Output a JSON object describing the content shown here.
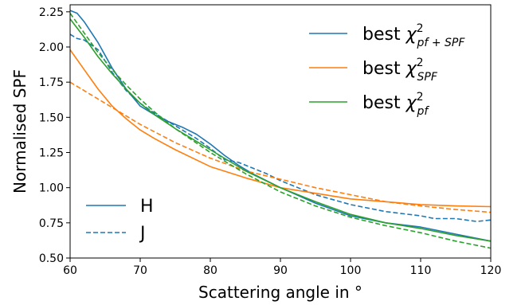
{
  "chart_data": {
    "type": "line",
    "xlabel": "Scattering angle in °",
    "ylabel": "Normalised SPF",
    "xlim": [
      60,
      120
    ],
    "ylim": [
      0.5,
      2.3
    ],
    "xticks": [
      "60",
      "70",
      "80",
      "90",
      "100",
      "110",
      "120"
    ],
    "yticks": [
      "0.50",
      "0.75",
      "1.00",
      "1.25",
      "1.50",
      "1.75",
      "2.00",
      "2.25"
    ],
    "grid": false,
    "colors": {
      "blue": "#1f77b4",
      "orange": "#ff7f0e",
      "green": "#2ca02c"
    },
    "legend_color": {
      "position": "top-right",
      "entries": [
        {
          "prefix": "best ",
          "chi": "χ",
          "sup": "2",
          "sub": "pf + SPF",
          "color": "#1f77b4"
        },
        {
          "prefix": "best ",
          "chi": "χ",
          "sup": "2",
          "sub": "SPF",
          "color": "#ff7f0e"
        },
        {
          "prefix": "best ",
          "chi": "χ",
          "sup": "2",
          "sub": "pf",
          "color": "#2ca02c"
        }
      ]
    },
    "legend_style": {
      "position": "bottom-left",
      "entries": [
        {
          "label": "H",
          "style": "solid",
          "color": "#1f77b4"
        },
        {
          "label": "J",
          "style": "dashed",
          "color": "#1f77b4"
        }
      ]
    },
    "series": [
      {
        "color_key": "blue",
        "style": "solid",
        "x": [
          60,
          61,
          62,
          64,
          66,
          68,
          70,
          72,
          74,
          76,
          78,
          80,
          82,
          84,
          86,
          88,
          90,
          95,
          100,
          105,
          110,
          115,
          120
        ],
        "y": [
          2.26,
          2.24,
          2.18,
          2.03,
          1.85,
          1.7,
          1.58,
          1.52,
          1.47,
          1.43,
          1.38,
          1.31,
          1.23,
          1.16,
          1.1,
          1.05,
          1.0,
          0.89,
          0.8,
          0.75,
          0.72,
          0.67,
          0.62
        ]
      },
      {
        "color_key": "blue",
        "style": "dashed",
        "x": [
          60,
          61,
          62,
          64,
          66,
          68,
          70,
          72,
          74,
          76,
          78,
          80,
          82,
          84,
          86,
          88,
          90,
          95,
          100,
          105,
          110,
          112,
          115,
          118,
          120
        ],
        "y": [
          2.09,
          2.06,
          2.05,
          1.98,
          1.82,
          1.69,
          1.6,
          1.53,
          1.47,
          1.41,
          1.35,
          1.28,
          1.2,
          1.18,
          1.14,
          1.1,
          1.05,
          0.95,
          0.88,
          0.83,
          0.8,
          0.78,
          0.78,
          0.76,
          0.77
        ]
      },
      {
        "color_key": "orange",
        "style": "solid",
        "x": [
          60,
          62,
          64,
          66,
          68,
          70,
          72,
          75,
          80,
          85,
          90,
          95,
          100,
          105,
          110,
          115,
          120
        ],
        "y": [
          1.98,
          1.84,
          1.7,
          1.58,
          1.49,
          1.41,
          1.35,
          1.27,
          1.15,
          1.07,
          1.0,
          0.96,
          0.92,
          0.9,
          0.88,
          0.87,
          0.865
        ]
      },
      {
        "color_key": "orange",
        "style": "dashed",
        "x": [
          60,
          65,
          70,
          75,
          80,
          85,
          90,
          95,
          100,
          105,
          110,
          115,
          120
        ],
        "y": [
          1.75,
          1.6,
          1.45,
          1.32,
          1.21,
          1.12,
          1.06,
          1.0,
          0.95,
          0.9,
          0.87,
          0.845,
          0.825
        ]
      },
      {
        "color_key": "green",
        "style": "solid",
        "x": [
          60,
          62,
          64,
          66,
          68,
          70,
          72,
          75,
          80,
          85,
          90,
          95,
          100,
          105,
          110,
          115,
          120
        ],
        "y": [
          2.2,
          2.07,
          1.93,
          1.81,
          1.7,
          1.6,
          1.52,
          1.42,
          1.27,
          1.12,
          1.0,
          0.9,
          0.81,
          0.75,
          0.71,
          0.66,
          0.62
        ]
      },
      {
        "color_key": "green",
        "style": "dashed",
        "x": [
          60,
          62,
          64,
          66,
          68,
          70,
          72,
          75,
          80,
          85,
          90,
          95,
          100,
          105,
          110,
          115,
          120
        ],
        "y": [
          2.24,
          2.1,
          1.96,
          1.84,
          1.73,
          1.63,
          1.54,
          1.42,
          1.25,
          1.1,
          0.97,
          0.87,
          0.79,
          0.73,
          0.68,
          0.62,
          0.57
        ]
      }
    ]
  }
}
